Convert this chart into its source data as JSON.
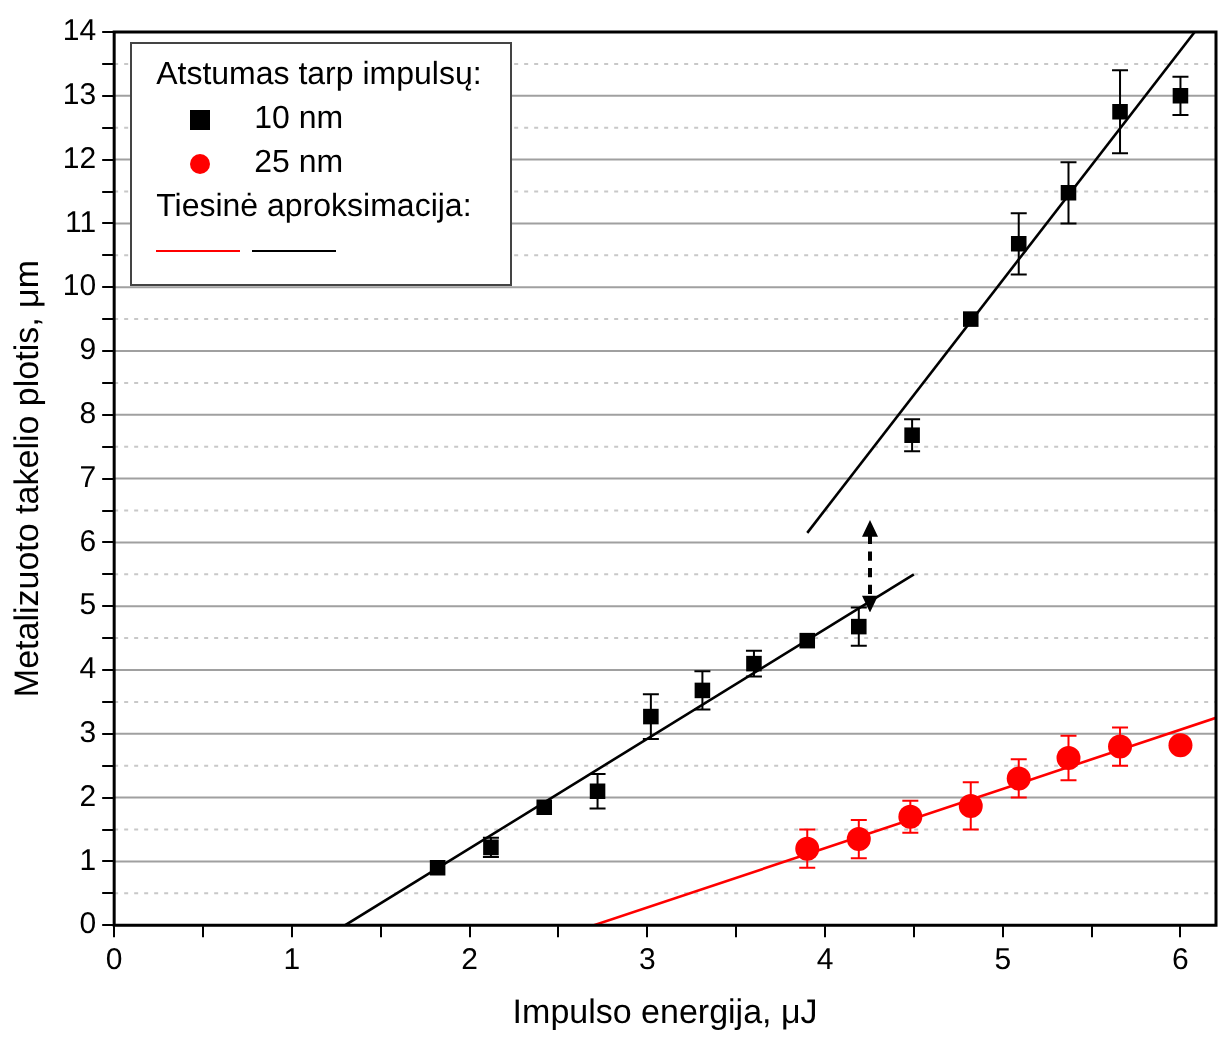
{
  "chart_data": {
    "type": "scatter",
    "xlabel": "Impulso energija, μJ",
    "ylabel": "Metalizuoto takelio plotis, μm",
    "legend_title": "Atstumas tarp impulsų:",
    "legend": "top left",
    "grid": "y",
    "xlim": [
      0,
      6.2
    ],
    "xticks": [
      0,
      {
        "value": 0.5,
        "label": null
      },
      1,
      {
        "value": 1.5,
        "label": null
      },
      2,
      {
        "value": 2.5,
        "label": null
      },
      3,
      {
        "value": 3.5,
        "label": null
      },
      4,
      {
        "value": 4.5,
        "label": null
      },
      5,
      {
        "value": 5.5,
        "label": null
      },
      6
    ],
    "ylim": [
      0,
      14
    ],
    "yticks": [
      0,
      {
        "value": 0.5,
        "label": null
      },
      1,
      {
        "value": 1.5,
        "label": null
      },
      2,
      {
        "value": 2.5,
        "label": null
      },
      3,
      {
        "value": 3.5,
        "label": null
      },
      4,
      {
        "value": 4.5,
        "label": null
      },
      5,
      {
        "value": 5.5,
        "label": null
      },
      6,
      {
        "value": 6.5,
        "label": null
      },
      7,
      {
        "value": 7.5,
        "label": null
      },
      8,
      {
        "value": 8.5,
        "label": null
      },
      9,
      {
        "value": 9.5,
        "label": null
      },
      10,
      {
        "value": 10.5,
        "label": null
      },
      11,
      {
        "value": 11.5,
        "label": null
      },
      12,
      {
        "value": 12.5,
        "label": null
      },
      13,
      {
        "value": 13.5,
        "label": null
      },
      14
    ],
    "annotations": [
      "Tiesinė aproksimacija:"
    ],
    "series": [
      {
        "name": "10 nm",
        "color": "#000000",
        "marker": "square",
        "x": [
          1.82,
          2.12,
          2.42,
          2.72,
          3.02,
          3.31,
          3.6,
          3.9,
          4.19,
          4.49,
          4.82,
          5.09,
          5.37,
          5.66,
          6.0
        ],
        "values": [
          0.9,
          1.22,
          1.85,
          2.1,
          3.27,
          3.68,
          4.1,
          4.46,
          4.68,
          7.68,
          9.5,
          10.68,
          11.48,
          12.75,
          13.0
        ],
        "errors": [
          null,
          0.15,
          null,
          0.27,
          0.35,
          0.3,
          0.2,
          null,
          0.3,
          0.25,
          null,
          0.48,
          0.48,
          0.65,
          0.3
        ]
      },
      {
        "name": "25 nm",
        "color": "#ff0000",
        "marker": "circle",
        "x": [
          3.9,
          4.19,
          4.48,
          4.82,
          5.09,
          5.37,
          5.66,
          6.0
        ],
        "values": [
          1.2,
          1.35,
          1.7,
          1.87,
          2.3,
          2.62,
          2.8,
          2.82
        ],
        "errors": [
          0.3,
          0.3,
          0.25,
          0.37,
          0.3,
          0.35,
          0.3,
          null
        ]
      },
      {
        "type": "line",
        "color": "#ff0000",
        "x": [
          2.7,
          6.2
        ],
        "values": [
          0,
          3.25
        ]
      },
      {
        "type": "line",
        "color": "#000000",
        "x": [
          1.3,
          4.5
        ],
        "values": [
          0,
          5.5
        ]
      },
      {
        "type": "line",
        "color": "#000000",
        "x": [
          3.9,
          6.08
        ],
        "values": [
          6.15,
          14
        ]
      }
    ]
  }
}
